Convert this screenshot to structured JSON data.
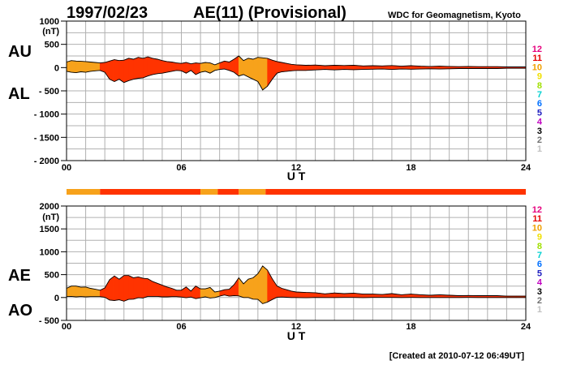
{
  "header": {
    "date": "1997/02/23",
    "title": "AE(11) (Provisional)",
    "org": "WDC for Geomagnetism, Kyoto"
  },
  "footer": {
    "created": "[Created at 2010-07-12 06:49UT]"
  },
  "legend": {
    "items": [
      {
        "label": "12",
        "color": "#e6007e"
      },
      {
        "label": "11",
        "color": "#e60000"
      },
      {
        "label": "10",
        "color": "#f0a000"
      },
      {
        "label": "9",
        "color": "#f0e000"
      },
      {
        "label": "8",
        "color": "#a0e000"
      },
      {
        "label": "7",
        "color": "#00d0d0"
      },
      {
        "label": "6",
        "color": "#0070ff"
      },
      {
        "label": "5",
        "color": "#2020c0"
      },
      {
        "label": "4",
        "color": "#c000c0"
      },
      {
        "label": "3",
        "color": "#000000"
      },
      {
        "label": "2",
        "color": "#707070"
      },
      {
        "label": "1",
        "color": "#c0c0c0"
      }
    ]
  },
  "colors": {
    "station11": "#ff3300",
    "station10": "#f7a21b"
  },
  "station_bar": {
    "segments": [
      {
        "from": 0,
        "to": 1.75,
        "stations": 10
      },
      {
        "from": 1.75,
        "to": 7.0,
        "stations": 11
      },
      {
        "from": 7.0,
        "to": 7.9,
        "stations": 10
      },
      {
        "from": 7.9,
        "to": 9.0,
        "stations": 11
      },
      {
        "from": 9.0,
        "to": 10.4,
        "stations": 10
      },
      {
        "from": 10.4,
        "to": 24,
        "stations": 11
      }
    ]
  },
  "chart_data": [
    {
      "type": "area",
      "upper_label": "AU",
      "lower_label": "AL",
      "unit": "(nT)",
      "xlabel": "U T",
      "xticks": [
        "00",
        "06",
        "12",
        "18",
        "24"
      ],
      "xlim": [
        0,
        24
      ],
      "ylim": [
        -2000,
        1000
      ],
      "yticks": [
        {
          "v": 1000,
          "label": "1000"
        },
        {
          "v": 500,
          "label": "500"
        },
        {
          "v": 0,
          "label": "0"
        },
        {
          "v": -500,
          "label": "- 500"
        },
        {
          "v": -1000,
          "label": "- 1000"
        },
        {
          "v": -1500,
          "label": "- 1500"
        },
        {
          "v": -2000,
          "label": "- 2000"
        }
      ],
      "grid": true,
      "x": [
        0,
        0.25,
        0.5,
        0.75,
        1.0,
        1.25,
        1.5,
        1.75,
        2.0,
        2.25,
        2.5,
        2.75,
        3.0,
        3.25,
        3.5,
        3.75,
        4.0,
        4.25,
        4.5,
        4.75,
        5.0,
        5.25,
        5.5,
        5.75,
        6.0,
        6.25,
        6.5,
        6.75,
        7.0,
        7.25,
        7.5,
        7.75,
        8.0,
        8.25,
        8.5,
        8.75,
        9.0,
        9.25,
        9.5,
        9.75,
        10.0,
        10.25,
        10.5,
        10.75,
        11.0,
        11.25,
        11.5,
        11.75,
        12.0,
        12.5,
        13.0,
        13.5,
        14.0,
        14.5,
        15.0,
        15.5,
        16.0,
        16.5,
        17.0,
        17.5,
        18.0,
        18.5,
        19.0,
        19.5,
        20.0,
        20.5,
        21.0,
        21.5,
        22.0,
        22.5,
        23.0,
        23.5,
        24.0
      ],
      "series": [
        {
          "values": [
            120,
            150,
            140,
            135,
            130,
            120,
            110,
            100,
            110,
            140,
            170,
            150,
            160,
            200,
            180,
            220,
            200,
            230,
            200,
            180,
            150,
            130,
            120,
            100,
            90,
            110,
            80,
            100,
            90,
            110,
            100,
            60,
            100,
            140,
            120,
            180,
            250,
            150,
            200,
            180,
            220,
            210,
            200,
            160,
            130,
            110,
            90,
            70,
            60,
            50,
            55,
            40,
            50,
            45,
            50,
            35,
            40,
            35,
            45,
            30,
            40,
            30,
            25,
            30,
            25,
            20,
            25,
            20,
            20,
            20,
            15,
            15,
            15
          ]
        },
        {
          "values": [
            -80,
            -100,
            -110,
            -90,
            -100,
            -80,
            -70,
            -60,
            -100,
            -250,
            -300,
            -250,
            -320,
            -280,
            -250,
            -230,
            -220,
            -180,
            -150,
            -130,
            -120,
            -100,
            -80,
            -60,
            -70,
            -120,
            -60,
            -150,
            -100,
            -80,
            -120,
            -60,
            -40,
            -30,
            -60,
            -100,
            -180,
            -150,
            -200,
            -250,
            -300,
            -480,
            -400,
            -250,
            -120,
            -90,
            -80,
            -70,
            -60,
            -60,
            -50,
            -40,
            -50,
            -40,
            -45,
            -40,
            -35,
            -30,
            -40,
            -30,
            -35,
            -30,
            -25,
            -30,
            -25,
            -20,
            -20,
            -20,
            -20,
            -20,
            -15,
            -15,
            -15
          ]
        }
      ]
    },
    {
      "type": "area",
      "upper_label": "AE",
      "lower_label": "AO",
      "unit": "(nT)",
      "xlabel": "U T",
      "xticks": [
        "00",
        "06",
        "12",
        "18",
        "24"
      ],
      "xlim": [
        0,
        24
      ],
      "ylim": [
        -500,
        2000
      ],
      "yticks": [
        {
          "v": 2000,
          "label": "2000"
        },
        {
          "v": 1500,
          "label": "1500"
        },
        {
          "v": 1000,
          "label": "1000"
        },
        {
          "v": 500,
          "label": "500"
        },
        {
          "v": 0,
          "label": "0"
        },
        {
          "v": -500,
          "label": "- 500"
        }
      ],
      "grid": true,
      "x": [
        0,
        0.25,
        0.5,
        0.75,
        1.0,
        1.25,
        1.5,
        1.75,
        2.0,
        2.25,
        2.5,
        2.75,
        3.0,
        3.25,
        3.5,
        3.75,
        4.0,
        4.25,
        4.5,
        4.75,
        5.0,
        5.25,
        5.5,
        5.75,
        6.0,
        6.25,
        6.5,
        6.75,
        7.0,
        7.25,
        7.5,
        7.75,
        8.0,
        8.25,
        8.5,
        8.75,
        9.0,
        9.25,
        9.5,
        9.75,
        10.0,
        10.25,
        10.5,
        10.75,
        11.0,
        11.25,
        11.5,
        11.75,
        12.0,
        12.5,
        13.0,
        13.5,
        14.0,
        14.5,
        15.0,
        15.5,
        16.0,
        16.5,
        17.0,
        17.5,
        18.0,
        18.5,
        19.0,
        19.5,
        20.0,
        20.5,
        21.0,
        21.5,
        22.0,
        22.5,
        23.0,
        23.5,
        24.0
      ],
      "series": [
        {
          "values": [
            200,
            250,
            250,
            225,
            230,
            200,
            180,
            160,
            210,
            390,
            470,
            400,
            480,
            480,
            430,
            450,
            420,
            410,
            350,
            310,
            270,
            230,
            200,
            160,
            160,
            230,
            140,
            250,
            190,
            190,
            220,
            120,
            140,
            170,
            180,
            280,
            430,
            300,
            400,
            430,
            520,
            690,
            600,
            410,
            250,
            200,
            170,
            140,
            120,
            110,
            105,
            80,
            100,
            85,
            95,
            75,
            75,
            65,
            85,
            60,
            75,
            60,
            50,
            60,
            50,
            40,
            45,
            40,
            40,
            40,
            30,
            30,
            30
          ]
        },
        {
          "values": [
            20,
            25,
            15,
            22,
            15,
            20,
            20,
            20,
            5,
            -55,
            -65,
            -50,
            -80,
            -40,
            -35,
            -5,
            -10,
            25,
            25,
            25,
            15,
            15,
            20,
            20,
            10,
            -5,
            10,
            -25,
            -5,
            15,
            -10,
            0,
            30,
            55,
            30,
            40,
            35,
            0,
            0,
            -35,
            -40,
            -135,
            -100,
            -45,
            5,
            10,
            5,
            0,
            0,
            -5,
            2,
            0,
            0,
            2,
            2,
            -2,
            2,
            2,
            2,
            0,
            2,
            0,
            0,
            0,
            0,
            0,
            2,
            0,
            0,
            0,
            0,
            0,
            0
          ]
        }
      ]
    }
  ]
}
